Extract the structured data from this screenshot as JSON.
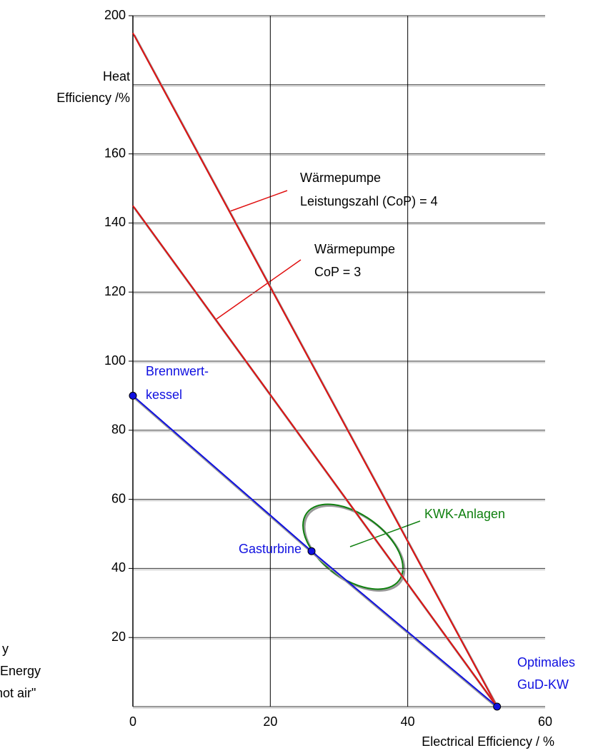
{
  "chart_data": {
    "type": "line",
    "y_label": [
      "Heat",
      "Efficiency /%"
    ],
    "x_label": "Electrical Efficiency / %",
    "xlim": [
      0,
      60
    ],
    "ylim": [
      0,
      200
    ],
    "xticks": [
      0,
      20,
      40,
      60
    ],
    "yticks": [
      20,
      40,
      60,
      80,
      100,
      120,
      140,
      160,
      200
    ],
    "xgrid": [
      20,
      40
    ],
    "ygrid": [
      0,
      20,
      40,
      60,
      80,
      100,
      120,
      140,
      160,
      180,
      200
    ],
    "grid": true,
    "series": [
      {
        "color": "#e01010",
        "x": [
          0,
          53
        ],
        "values": [
          195,
          0
        ]
      },
      {
        "color": "#e01010",
        "x": [
          0,
          53
        ],
        "values": [
          145,
          0
        ]
      },
      {
        "color": "#1010e0",
        "x": [
          0,
          26,
          53
        ],
        "values": [
          90,
          45,
          0
        ],
        "markers": true
      }
    ],
    "annotations": {
      "cop4": [
        "Wärmepumpe",
        "Leistungszahl (CoP) = 4"
      ],
      "cop3": [
        "Wärmepumpe",
        "CoP = 3"
      ],
      "brennwert": [
        "Brennwert-",
        "kessel"
      ],
      "gasturbine": "Gasturbine",
      "kwk": "KWK-Anlagen",
      "gud": [
        "Optimales",
        "GuD-KW"
      ],
      "clipped": [
        "y",
        "Energy",
        "hot air\""
      ]
    }
  }
}
